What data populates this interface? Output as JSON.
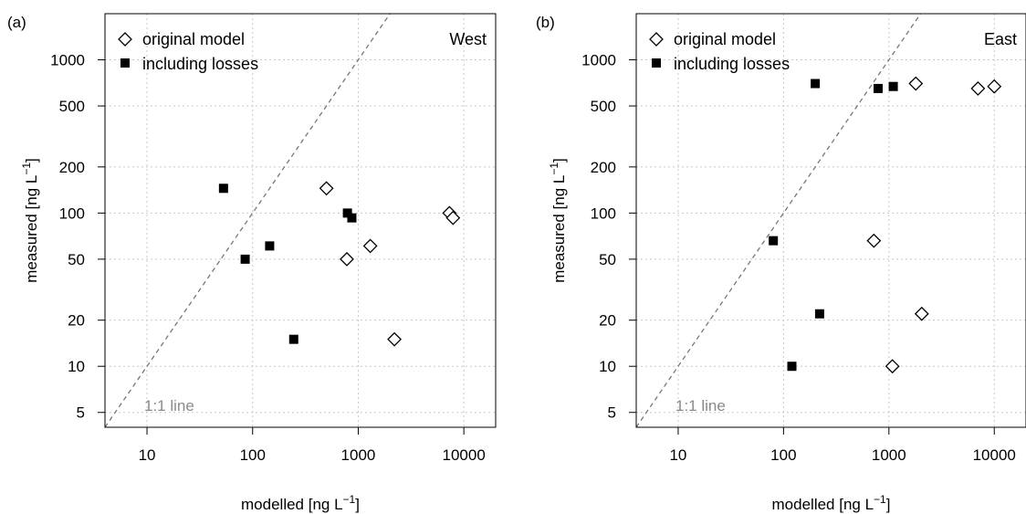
{
  "chart_data": [
    {
      "type": "scatter",
      "panel_label": "(a)",
      "corner_label": "West",
      "xlabel": "modelled [ng L",
      "ylabel": "measured [ng L",
      "unit_exponent": "−1",
      "x_scale": "log",
      "y_scale": "log",
      "xlim": [
        4,
        20000
      ],
      "ylim": [
        4,
        2000
      ],
      "x_ticks": [
        10,
        100,
        1000,
        10000
      ],
      "x_tick_labels": [
        "10",
        "100",
        "1000",
        "10000"
      ],
      "y_ticks": [
        5,
        10,
        20,
        50,
        100,
        200,
        500,
        1000
      ],
      "y_tick_labels": [
        "5",
        "10",
        "20",
        "50",
        "100",
        "200",
        "500",
        "1000"
      ],
      "grid": true,
      "legend_position": "top-left",
      "reference_line": {
        "label": "1:1 line"
      },
      "series": [
        {
          "name": "original model",
          "marker": "open-diamond",
          "x": [
            500,
            1300,
            780,
            2200,
            7300,
            7900
          ],
          "y": [
            145,
            61,
            50,
            15,
            100,
            93
          ]
        },
        {
          "name": "including losses",
          "marker": "filled-square",
          "x": [
            53,
            145,
            85,
            245,
            790,
            870
          ],
          "y": [
            145,
            61,
            50,
            15,
            100,
            93
          ]
        }
      ]
    },
    {
      "type": "scatter",
      "panel_label": "(b)",
      "corner_label": "East",
      "xlabel": "modelled [ng L",
      "ylabel": "measured [ng L",
      "unit_exponent": "−1",
      "x_scale": "log",
      "y_scale": "log",
      "xlim": [
        4,
        20000
      ],
      "ylim": [
        4,
        2000
      ],
      "x_ticks": [
        10,
        100,
        1000,
        10000
      ],
      "x_tick_labels": [
        "10",
        "100",
        "1000",
        "10000"
      ],
      "y_ticks": [
        5,
        10,
        20,
        50,
        100,
        200,
        500,
        1000
      ],
      "y_tick_labels": [
        "5",
        "10",
        "20",
        "50",
        "100",
        "200",
        "500",
        "1000"
      ],
      "grid": true,
      "legend_position": "top-left",
      "reference_line": {
        "label": "1:1 line"
      },
      "series": [
        {
          "name": "original model",
          "marker": "open-diamond",
          "x": [
            720,
            1800,
            7000,
            10000,
            2050,
            1080
          ],
          "y": [
            66,
            700,
            650,
            670,
            22,
            10
          ]
        },
        {
          "name": "including losses",
          "marker": "filled-square",
          "x": [
            80,
            200,
            790,
            1100,
            220,
            120
          ],
          "y": [
            66,
            700,
            650,
            670,
            22,
            10
          ]
        }
      ]
    }
  ]
}
